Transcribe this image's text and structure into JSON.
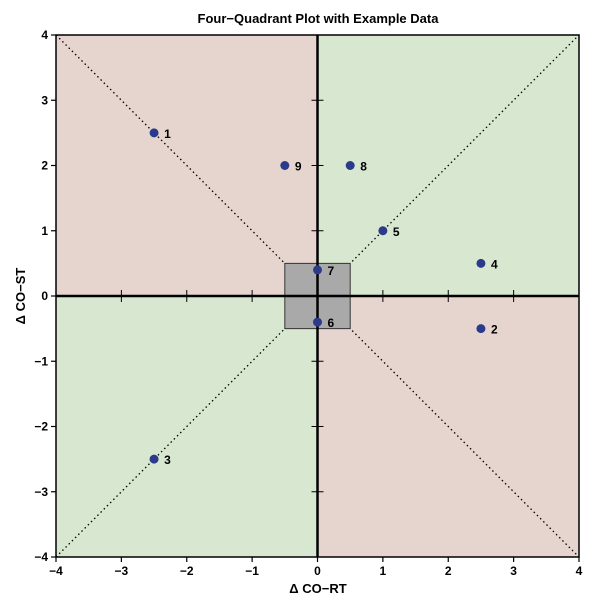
{
  "chart_data": {
    "type": "scatter",
    "title": "Four−Quadrant Plot with Example Data",
    "xlabel": "Δ CO−RT",
    "ylabel": "Δ CO−ST",
    "xlim": [
      -4,
      4
    ],
    "ylim": [
      -4,
      4
    ],
    "xticks": [
      {
        "value": -4,
        "label": "−4"
      },
      {
        "value": -3,
        "label": "−3"
      },
      {
        "value": -2,
        "label": "−2"
      },
      {
        "value": -1,
        "label": "−1"
      },
      {
        "value": 0,
        "label": "0"
      },
      {
        "value": 1,
        "label": "1"
      },
      {
        "value": 2,
        "label": "2"
      },
      {
        "value": 3,
        "label": "3"
      },
      {
        "value": 4,
        "label": "4"
      }
    ],
    "yticks": [
      {
        "value": -4,
        "label": "−4"
      },
      {
        "value": -3,
        "label": "−3"
      },
      {
        "value": -2,
        "label": "−2"
      },
      {
        "value": -1,
        "label": "−1"
      },
      {
        "value": 0,
        "label": "0"
      },
      {
        "value": 1,
        "label": "1"
      },
      {
        "value": 2,
        "label": "2"
      },
      {
        "value": 3,
        "label": "3"
      },
      {
        "value": 4,
        "label": "4"
      }
    ],
    "quadrant_colors": {
      "upper_left": "#e6d5cf",
      "upper_right": "#d8e8d0",
      "lower_left": "#d8e8d0",
      "lower_right": "#e6d5cf"
    },
    "center_box": {
      "xmin": -0.5,
      "xmax": 0.5,
      "ymin": -0.5,
      "ymax": 0.5,
      "color": "#a9a9a9"
    },
    "diagonals": true,
    "point_color": "#2b3a8a",
    "points": [
      {
        "label": "1",
        "x": -2.5,
        "y": 2.5
      },
      {
        "label": "2",
        "x": 2.5,
        "y": -0.5
      },
      {
        "label": "3",
        "x": -2.5,
        "y": -2.5
      },
      {
        "label": "4",
        "x": 2.5,
        "y": 0.5
      },
      {
        "label": "5",
        "x": 1.0,
        "y": 1.0
      },
      {
        "label": "6",
        "x": 0.0,
        "y": -0.4
      },
      {
        "label": "7",
        "x": 0.0,
        "y": 0.4
      },
      {
        "label": "8",
        "x": 0.5,
        "y": 2.0
      },
      {
        "label": "9",
        "x": -0.5,
        "y": 2.0
      }
    ],
    "grid": false
  }
}
